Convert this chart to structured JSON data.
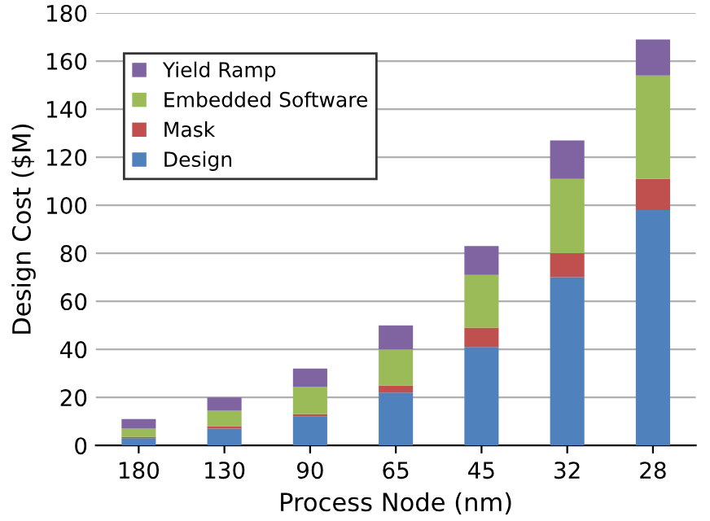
{
  "chart_data": {
    "type": "bar",
    "stacked": true,
    "xlabel": "Process Node (nm)",
    "ylabel": "Design Cost ($M)",
    "categories": [
      "180",
      "130",
      "90",
      "65",
      "45",
      "32",
      "28"
    ],
    "series": [
      {
        "name": "Design",
        "color": "#4f81bd",
        "values": [
          3,
          7,
          12,
          22,
          41,
          70,
          98
        ]
      },
      {
        "name": "Mask",
        "color": "#c0504d",
        "values": [
          0.5,
          1,
          1,
          3,
          8,
          10,
          13
        ]
      },
      {
        "name": "Embedded Software",
        "color": "#9bbb59",
        "values": [
          3.5,
          6.5,
          11.5,
          15,
          22,
          31,
          43
        ]
      },
      {
        "name": "Yield Ramp",
        "color": "#8064a2",
        "values": [
          4,
          5.5,
          7.5,
          10,
          12,
          16,
          15
        ]
      }
    ],
    "ylim": [
      0,
      180
    ],
    "yticks": [
      0,
      20,
      40,
      60,
      80,
      100,
      120,
      140,
      160,
      180
    ],
    "grid": "y",
    "legend": "top left"
  }
}
